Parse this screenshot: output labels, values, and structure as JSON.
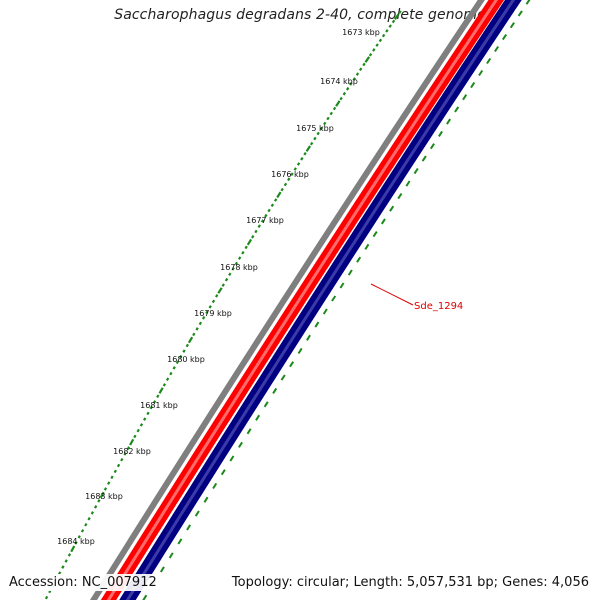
{
  "title": "Saccharophagus degradans 2-40, complete genome",
  "accession": "Accession: NC_007912",
  "topology": "Topology: circular; Length: 5,057,531 bp; Genes: 4,056",
  "ruler": {
    "ticks": [
      "1673 kbp",
      "1674 kbp",
      "1675 kbp",
      "1676 kbp",
      "1677 kbp",
      "1678 kbp",
      "1679 kbp",
      "1680 kbp",
      "1681 kbp",
      "1682 kbp",
      "1683 kbp",
      "1684 kbp"
    ]
  },
  "gene_label": "Sde_1294",
  "colors": {
    "ruler_ticks": "#1a8a1a",
    "backbone": "#808080",
    "forward_genes": "#ff0000",
    "reverse_genes": "#000080",
    "gene_label": "#e00000"
  }
}
